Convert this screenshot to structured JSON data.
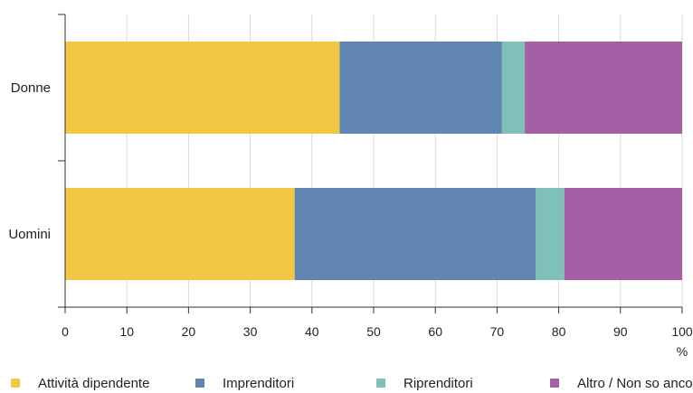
{
  "chart_data": {
    "type": "bar",
    "orientation": "horizontal",
    "stacked": true,
    "categories": [
      "Donne",
      "Uomini"
    ],
    "series": [
      {
        "name": "Attività dipendente",
        "values": [
          44.5,
          37.2
        ],
        "color": "#f2c744"
      },
      {
        "name": "Imprenditori",
        "values": [
          26.3,
          39.1
        ],
        "color": "#6185b2"
      },
      {
        "name": "Riprenditori",
        "values": [
          3.7,
          4.6
        ],
        "color": "#7fc1b8"
      },
      {
        "name": "Altro / Non so ancora",
        "values": [
          25.5,
          19.1
        ],
        "color": "#a65fa5"
      }
    ],
    "xlim": [
      0,
      100
    ],
    "xticks": [
      "0",
      "10",
      "20",
      "30",
      "40",
      "50",
      "60",
      "70",
      "80",
      "90",
      "100"
    ],
    "xunit": "%",
    "grid": "vertical",
    "legend": "bottom"
  }
}
